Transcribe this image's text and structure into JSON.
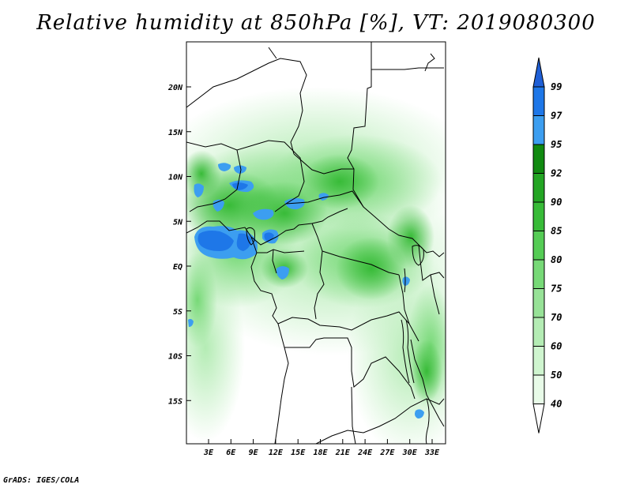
{
  "title": "Relative humidity at 850hPa [%], VT: 2019080300",
  "footer": "GrADS: IGES/COLA",
  "lat_labels": [
    "20N",
    "15N",
    "10N",
    "5N",
    "EQ",
    "5S",
    "10S",
    "15S"
  ],
  "lon_labels": [
    "3E",
    "6E",
    "9E",
    "12E",
    "15E",
    "18E",
    "21E",
    "24E",
    "27E",
    "30E",
    "33E"
  ],
  "colorbar": {
    "levels": [
      "99",
      "97",
      "95",
      "92",
      "90",
      "85",
      "80",
      "75",
      "70",
      "60",
      "50",
      "40"
    ],
    "colors": [
      "#1f5fd6",
      "#1e77e8",
      "#3c9ef0",
      "#108a10",
      "#23a523",
      "#38bb38",
      "#55cc55",
      "#77d977",
      "#97e297",
      "#b4ecb4",
      "#cff5cf",
      "#e8fbe8",
      "#ffffff"
    ]
  }
}
